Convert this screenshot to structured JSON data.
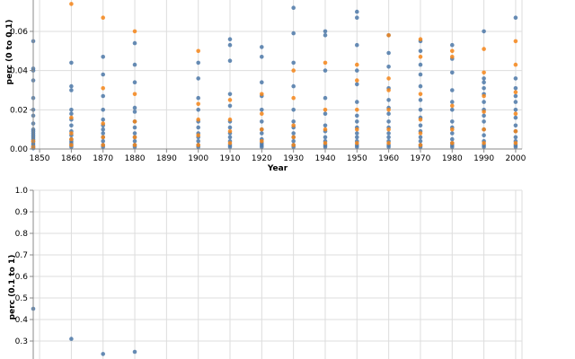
{
  "chart_data": [
    {
      "type": "scatter",
      "title": "",
      "xlabel": "Year",
      "ylabel": "perc (0 to 0.1)",
      "xticks": [
        "1850",
        "1860",
        "1870",
        "1880",
        "1890",
        "1900",
        "1910",
        "1920",
        "1930",
        "1940",
        "1950",
        "1960",
        "1970",
        "1980",
        "1990",
        "2000"
      ],
      "xlim": [
        1848,
        2002
      ],
      "yticks": [
        "0.00",
        "0.02",
        "0.04",
        "0.06"
      ],
      "ylim": [
        0,
        0.076
      ],
      "grid": true,
      "colors": {
        "blue": "#4c78a8",
        "orange": "#f58518"
      },
      "series": [
        {
          "color": "blue",
          "x": [
            1848,
            1848,
            1848,
            1848,
            1848,
            1848,
            1848,
            1848,
            1848,
            1848,
            1848,
            1848,
            1848,
            1848,
            1848,
            1848,
            1848,
            1848,
            1848,
            1860,
            1860,
            1860,
            1860,
            1860,
            1860,
            1860,
            1860,
            1860,
            1860,
            1860,
            1860,
            1860,
            1860,
            1870,
            1870,
            1870,
            1870,
            1870,
            1870,
            1870,
            1870,
            1870,
            1870,
            1870,
            1870,
            1880,
            1880,
            1880,
            1880,
            1880,
            1880,
            1880,
            1880,
            1880,
            1880,
            1880,
            1880,
            1900,
            1900,
            1900,
            1900,
            1900,
            1900,
            1900,
            1900,
            1900,
            1900,
            1900,
            1910,
            1910,
            1910,
            1910,
            1910,
            1910,
            1910,
            1910,
            1910,
            1910,
            1910,
            1910,
            1920,
            1920,
            1920,
            1920,
            1920,
            1920,
            1920,
            1920,
            1920,
            1920,
            1920,
            1920,
            1930,
            1930,
            1930,
            1930,
            1930,
            1930,
            1930,
            1930,
            1930,
            1930,
            1930,
            1930,
            1940,
            1940,
            1940,
            1940,
            1940,
            1940,
            1940,
            1940,
            1940,
            1940,
            1940,
            1950,
            1950,
            1950,
            1950,
            1950,
            1950,
            1950,
            1950,
            1950,
            1950,
            1950,
            1950,
            1950,
            1950,
            1960,
            1960,
            1960,
            1960,
            1960,
            1960,
            1960,
            1960,
            1960,
            1960,
            1960,
            1960,
            1960,
            1960,
            1970,
            1970,
            1970,
            1970,
            1970,
            1970,
            1970,
            1970,
            1970,
            1970,
            1970,
            1970,
            1970,
            1970,
            1980,
            1980,
            1980,
            1980,
            1980,
            1980,
            1980,
            1980,
            1980,
            1980,
            1980,
            1980,
            1980,
            1990,
            1990,
            1990,
            1990,
            1990,
            1990,
            1990,
            1990,
            1990,
            1990,
            1990,
            1990,
            1990,
            1990,
            2000,
            2000,
            2000,
            2000,
            2000,
            2000,
            2000,
            2000,
            2000,
            2000,
            2000,
            2000,
            2000
          ],
          "y": [
            0.055,
            0.041,
            0.04,
            0.035,
            0.026,
            0.02,
            0.017,
            0.013,
            0.01,
            0.009,
            0.008,
            0.007,
            0.006,
            0.005,
            0.004,
            0.003,
            0.002,
            0.001,
            0.0003,
            0.044,
            0.032,
            0.03,
            0.02,
            0.018,
            0.015,
            0.012,
            0.009,
            0.007,
            0.005,
            0.004,
            0.003,
            0.002,
            0.001,
            0.047,
            0.038,
            0.027,
            0.02,
            0.015,
            0.012,
            0.01,
            0.008,
            0.006,
            0.004,
            0.002,
            0.001,
            0.054,
            0.043,
            0.034,
            0.021,
            0.019,
            0.014,
            0.011,
            0.008,
            0.006,
            0.004,
            0.002,
            0.001,
            0.044,
            0.036,
            0.026,
            0.02,
            0.014,
            0.011,
            0.008,
            0.006,
            0.004,
            0.002,
            0.001,
            0.056,
            0.053,
            0.045,
            0.028,
            0.022,
            0.014,
            0.011,
            0.008,
            0.006,
            0.004,
            0.002,
            0.001,
            0.052,
            0.047,
            0.034,
            0.027,
            0.02,
            0.014,
            0.01,
            0.008,
            0.005,
            0.003,
            0.002,
            0.001,
            0.072,
            0.059,
            0.044,
            0.032,
            0.02,
            0.014,
            0.011,
            0.008,
            0.006,
            0.004,
            0.002,
            0.001,
            0.06,
            0.058,
            0.04,
            0.026,
            0.018,
            0.012,
            0.009,
            0.006,
            0.004,
            0.002,
            0.001,
            0.07,
            0.067,
            0.053,
            0.04,
            0.033,
            0.024,
            0.017,
            0.014,
            0.011,
            0.008,
            0.006,
            0.004,
            0.002,
            0.001,
            0.058,
            0.049,
            0.042,
            0.031,
            0.025,
            0.021,
            0.018,
            0.014,
            0.011,
            0.008,
            0.006,
            0.004,
            0.002,
            0.001,
            0.055,
            0.05,
            0.043,
            0.038,
            0.032,
            0.025,
            0.02,
            0.016,
            0.012,
            0.009,
            0.006,
            0.004,
            0.002,
            0.001,
            0.053,
            0.046,
            0.039,
            0.03,
            0.024,
            0.02,
            0.014,
            0.011,
            0.008,
            0.005,
            0.003,
            0.002,
            0.001,
            0.06,
            0.036,
            0.034,
            0.031,
            0.028,
            0.024,
            0.02,
            0.017,
            0.014,
            0.01,
            0.007,
            0.004,
            0.002,
            0.001,
            0.067,
            0.036,
            0.031,
            0.027,
            0.024,
            0.02,
            0.016,
            0.012,
            0.009,
            0.006,
            0.004,
            0.002,
            0.001
          ]
        },
        {
          "color": "orange",
          "x": [
            1848,
            1848,
            1860,
            1860,
            1860,
            1860,
            1860,
            1870,
            1870,
            1870,
            1870,
            1870,
            1880,
            1880,
            1880,
            1880,
            1880,
            1900,
            1900,
            1900,
            1900,
            1900,
            1910,
            1910,
            1910,
            1910,
            1920,
            1920,
            1920,
            1920,
            1930,
            1930,
            1930,
            1930,
            1930,
            1940,
            1940,
            1940,
            1940,
            1950,
            1950,
            1950,
            1950,
            1950,
            1960,
            1960,
            1960,
            1960,
            1960,
            1960,
            1970,
            1970,
            1970,
            1970,
            1970,
            1970,
            1980,
            1980,
            1980,
            1980,
            1980,
            1990,
            1990,
            1990,
            1990,
            1990,
            1990,
            2000,
            2000,
            2000,
            2000,
            2000,
            2000
          ],
          "y": [
            0.004,
            0.001,
            0.074,
            0.016,
            0.008,
            0.005,
            0.002,
            0.067,
            0.031,
            0.013,
            0.006,
            0.002,
            0.06,
            0.028,
            0.014,
            0.006,
            0.002,
            0.05,
            0.023,
            0.015,
            0.007,
            0.002,
            0.025,
            0.015,
            0.009,
            0.003,
            0.028,
            0.018,
            0.01,
            0.004,
            0.04,
            0.026,
            0.012,
            0.006,
            0.002,
            0.044,
            0.02,
            0.01,
            0.003,
            0.043,
            0.035,
            0.02,
            0.01,
            0.003,
            0.058,
            0.036,
            0.03,
            0.02,
            0.01,
            0.003,
            0.056,
            0.047,
            0.028,
            0.015,
            0.008,
            0.002,
            0.05,
            0.047,
            0.022,
            0.01,
            0.003,
            0.051,
            0.039,
            0.027,
            0.019,
            0.01,
            0.003,
            0.055,
            0.043,
            0.029,
            0.018,
            0.009,
            0.003
          ]
        }
      ]
    },
    {
      "type": "scatter",
      "title": "",
      "xlabel": "",
      "ylabel": "perc (0.1 to 1)",
      "xlim": [
        1848,
        2002
      ],
      "yticks": [
        "0.3",
        "0.4",
        "0.5",
        "0.6",
        "0.7",
        "0.8",
        "0.9",
        "1.0"
      ],
      "ylim": [
        0,
        1
      ],
      "grid": true,
      "series": [
        {
          "color": "blue",
          "x": [
            1848,
            1860,
            1870,
            1880
          ],
          "y": [
            0.45,
            0.31,
            0.24,
            0.25
          ]
        }
      ]
    }
  ]
}
